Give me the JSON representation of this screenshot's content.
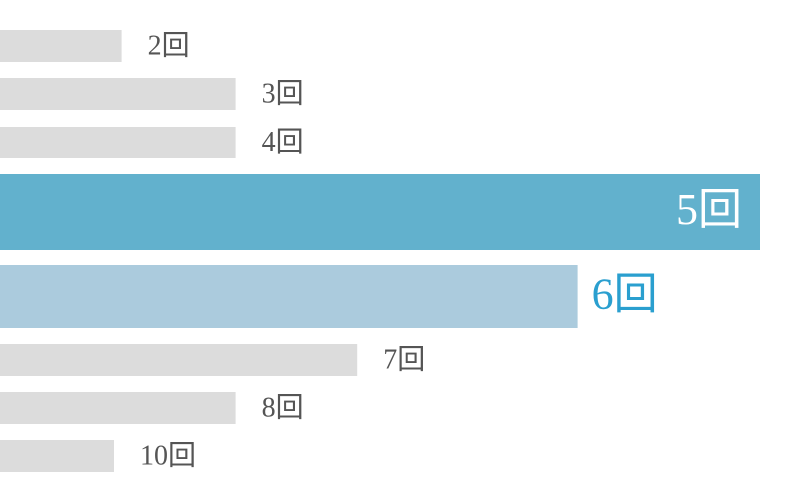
{
  "chart_data": {
    "type": "bar",
    "orientation": "horizontal",
    "categories": [
      "2回",
      "3回",
      "4回",
      "5回",
      "6回",
      "7回",
      "8回",
      "10回"
    ],
    "values": [
      16,
      31,
      31,
      100,
      76,
      47,
      31,
      15
    ],
    "colors": [
      "#dcdcdc",
      "#dcdcdc",
      "#dcdcdc",
      "#62b1cd",
      "#abcbdd",
      "#dcdcdc",
      "#dcdcdc",
      "#dcdcdc"
    ],
    "label_colors": [
      "#555555",
      "#555555",
      "#555555",
      "#ffffff",
      "#2a9fcf",
      "#555555",
      "#555555",
      "#555555"
    ]
  }
}
